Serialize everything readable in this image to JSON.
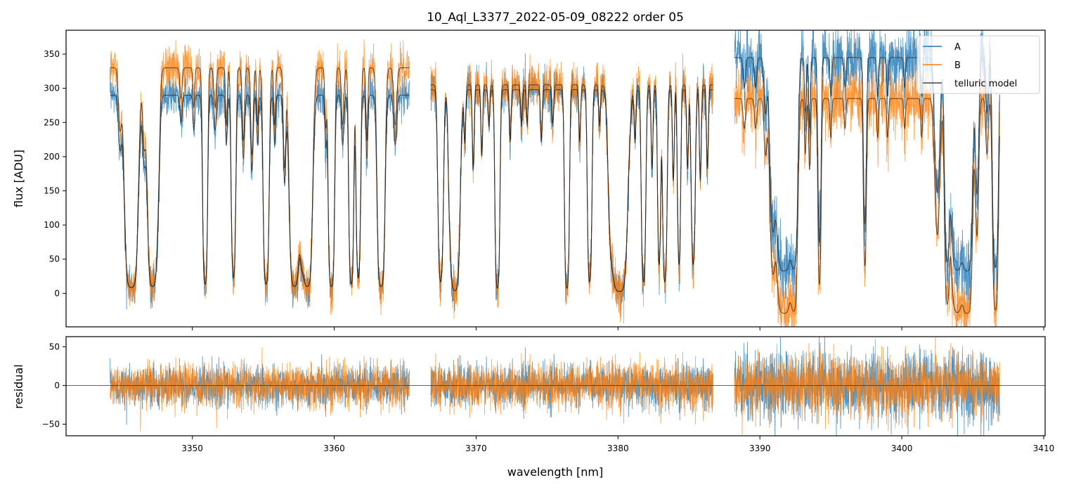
{
  "chart_data": [
    {
      "type": "line",
      "title": "10_Aql_L3377_2022-05-09_08222  order 05",
      "xlabel": "",
      "ylabel": "flux [ADU]",
      "xlim": [
        3341.1,
        3410.1
      ],
      "ylim": [
        -49,
        385
      ],
      "xticks": [
        "3350",
        "3360",
        "3370",
        "3380",
        "3390",
        "3400",
        "3410"
      ],
      "yticks": [
        "0",
        "50",
        "100",
        "150",
        "200",
        "250",
        "300",
        "350"
      ],
      "grid": false,
      "legend": {
        "position": "top-right",
        "entries": [
          "A",
          "B",
          "telluric model"
        ]
      },
      "colors": {
        "A": "#1f77b4",
        "B": "#ff7f0e",
        "telluric model": "#222222"
      },
      "segments": [
        {
          "range": [
            3344.2,
            3365.3
          ],
          "continuum": {
            "A": 290,
            "B": 330
          },
          "floor": {
            "A": 8,
            "B": 8
          },
          "noise": {
            "A": 14,
            "B": 16
          }
        },
        {
          "range": [
            3366.8,
            3386.7
          ],
          "continuum": {
            "A": 298,
            "B": 305
          },
          "floor": {
            "A": 2,
            "B": 2
          },
          "noise": {
            "A": 15,
            "B": 16
          }
        },
        {
          "range": [
            3388.2,
            3406.9
          ],
          "continuum": {
            "A": 345,
            "B": 285
          },
          "floor": {
            "A": 32,
            "B": -30
          },
          "noise": {
            "A": 24,
            "B": 22
          }
        }
      ],
      "telluric_lines": [
        [
          3344.9,
          0.3,
          0.1
        ],
        [
          3345.7,
          6,
          0.25
        ],
        [
          3346.6,
          0.4,
          0.1
        ],
        [
          3347.2,
          5,
          0.2
        ],
        [
          3347.6,
          0.3,
          0.1
        ],
        [
          3349.2,
          0.15,
          0.08
        ],
        [
          3350.1,
          0.2,
          0.06
        ],
        [
          3350.9,
          4,
          0.1
        ],
        [
          3351.6,
          0.2,
          0.08
        ],
        [
          3352.4,
          0.3,
          0.06
        ],
        [
          3352.9,
          3,
          0.1
        ],
        [
          3353.6,
          0.4,
          0.08
        ],
        [
          3354.2,
          0.5,
          0.08
        ],
        [
          3354.6,
          0.3,
          0.06
        ],
        [
          3355.2,
          4,
          0.12
        ],
        [
          3355.8,
          0.3,
          0.06
        ],
        [
          3356.5,
          0.6,
          0.08
        ],
        [
          3357.2,
          5,
          0.2
        ],
        [
          3357.7,
          1.5,
          0.12
        ],
        [
          3358.1,
          5,
          0.2
        ],
        [
          3359.4,
          0.3,
          0.06
        ],
        [
          3359.8,
          5,
          0.12
        ],
        [
          3360.6,
          0.3,
          0.08
        ],
        [
          3361.2,
          4,
          0.1
        ],
        [
          3361.7,
          3,
          0.1
        ],
        [
          3362.3,
          0.4,
          0.06
        ],
        [
          3363.3,
          5,
          0.15
        ],
        [
          3364.3,
          0.3,
          0.1
        ],
        [
          3367.5,
          3,
          0.12
        ],
        [
          3368.1,
          0.3,
          0.06
        ],
        [
          3368.5,
          5,
          0.2
        ],
        [
          3369.2,
          0.3,
          0.06
        ],
        [
          3369.8,
          0.5,
          0.06
        ],
        [
          3370.4,
          0.4,
          0.06
        ],
        [
          3370.9,
          0.2,
          0.06
        ],
        [
          3371.5,
          4,
          0.1
        ],
        [
          3372.4,
          0.3,
          0.06
        ],
        [
          3373.2,
          0.2,
          0.06
        ],
        [
          3373.6,
          0.2,
          0.05
        ],
        [
          3374.6,
          0.3,
          0.06
        ],
        [
          3375.4,
          0.2,
          0.06
        ],
        [
          3376.4,
          4,
          0.1
        ],
        [
          3377.3,
          0.3,
          0.06
        ],
        [
          3378.0,
          3,
          0.1
        ],
        [
          3378.7,
          0.2,
          0.06
        ],
        [
          3379.5,
          1,
          0.15
        ],
        [
          3380.1,
          6,
          0.3
        ],
        [
          3381.2,
          0.3,
          0.06
        ],
        [
          3381.8,
          3,
          0.1
        ],
        [
          3382.4,
          0.5,
          0.06
        ],
        [
          3382.9,
          2,
          0.08
        ],
        [
          3383.3,
          3,
          0.1
        ],
        [
          3383.9,
          0.6,
          0.06
        ],
        [
          3384.3,
          2,
          0.08
        ],
        [
          3384.9,
          0.5,
          0.06
        ],
        [
          3385.3,
          2,
          0.1
        ],
        [
          3385.8,
          0.6,
          0.06
        ],
        [
          3386.3,
          0.5,
          0.06
        ],
        [
          3388.9,
          0.15,
          0.08
        ],
        [
          3389.7,
          0.15,
          0.08
        ],
        [
          3390.4,
          0.3,
          0.1
        ],
        [
          3390.9,
          1.5,
          0.15
        ],
        [
          3391.7,
          6,
          0.3
        ],
        [
          3392.4,
          4,
          0.15
        ],
        [
          3393.2,
          0.3,
          0.06
        ],
        [
          3393.5,
          0.4,
          0.06
        ],
        [
          3394.2,
          2,
          0.08
        ],
        [
          3395.0,
          0.2,
          0.06
        ],
        [
          3396.0,
          0.15,
          0.06
        ],
        [
          3397.4,
          1.5,
          0.08
        ],
        [
          3398.3,
          0.2,
          0.06
        ],
        [
          3399.0,
          0.2,
          0.06
        ],
        [
          3400.2,
          0.15,
          0.06
        ],
        [
          3401.4,
          0.2,
          0.06
        ],
        [
          3402.5,
          1,
          0.15
        ],
        [
          3403.2,
          3,
          0.12
        ],
        [
          3403.9,
          5,
          0.25
        ],
        [
          3404.6,
          6,
          0.2
        ],
        [
          3405.3,
          1,
          0.1
        ],
        [
          3406.0,
          0.3,
          0.08
        ],
        [
          3406.6,
          4,
          0.12
        ]
      ]
    },
    {
      "type": "line",
      "xlabel": "wavelength [nm]",
      "ylabel": "residual",
      "xlim": [
        3341.1,
        3410.1
      ],
      "ylim": [
        -65,
        63
      ],
      "xticks": [
        "3350",
        "3360",
        "3370",
        "3380",
        "3390",
        "3400",
        "3410"
      ],
      "yticks": [
        "-50",
        "0",
        "50"
      ],
      "zero_line": true,
      "colors": {
        "A": "#1f77b4",
        "B": "#ff7f0e"
      }
    }
  ]
}
